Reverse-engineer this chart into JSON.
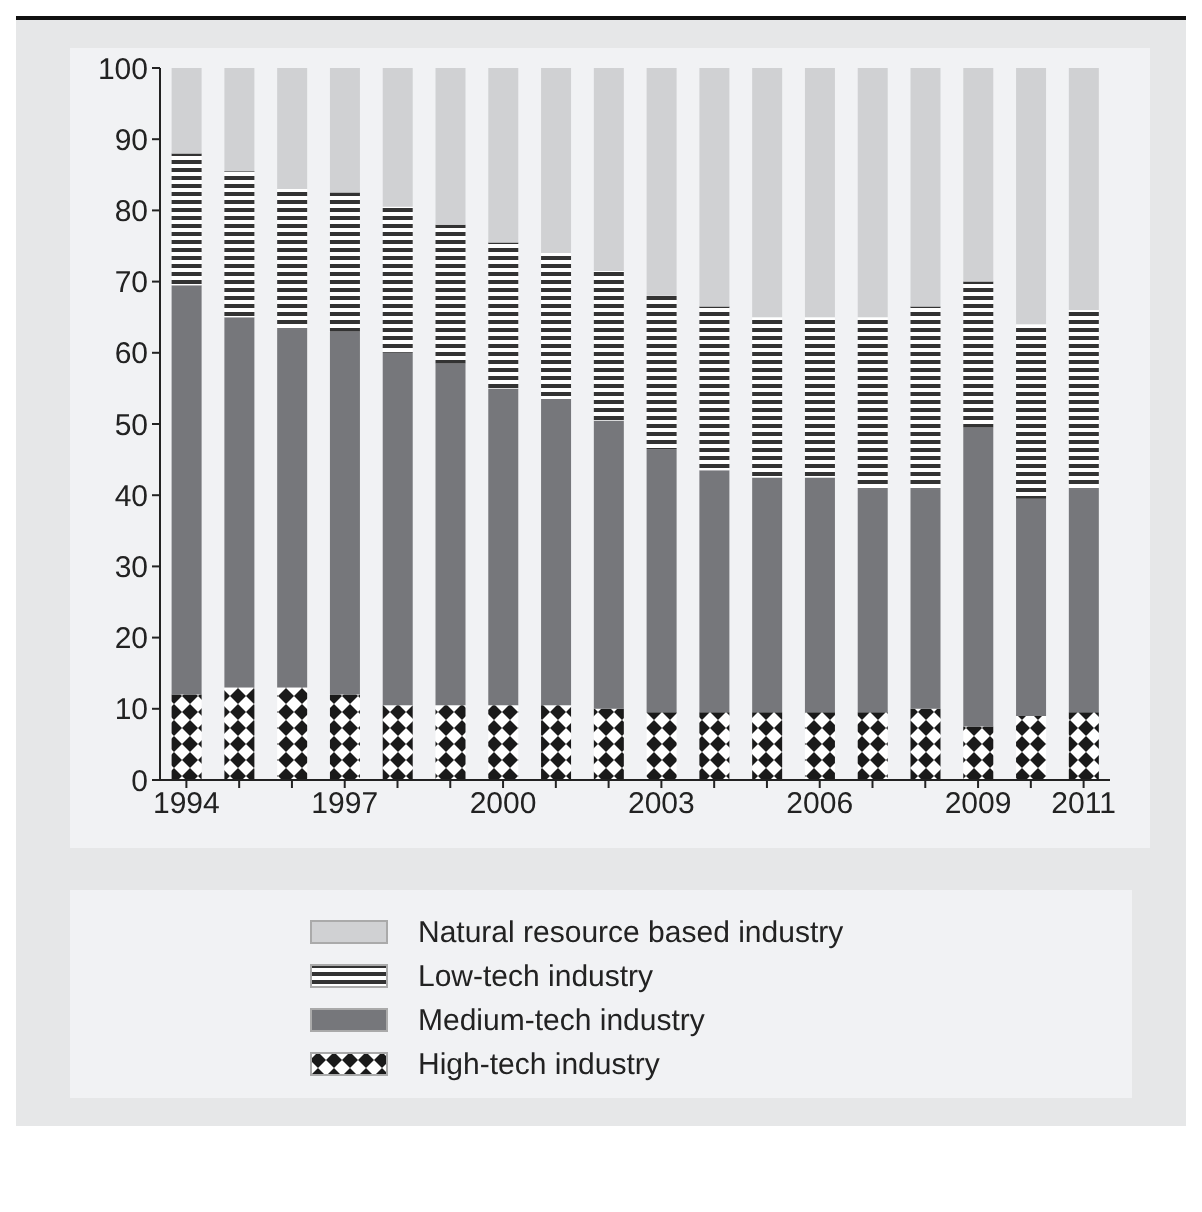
{
  "chart_data": {
    "type": "bar",
    "stacked": true,
    "categories": [
      "1994",
      null,
      null,
      "1997",
      null,
      null,
      "2000",
      null,
      null,
      "2003",
      null,
      null,
      "2006",
      null,
      null,
      "2009",
      null,
      "2011"
    ],
    "series": [
      {
        "name": "High-tech industry",
        "color": "#1a1a1a",
        "values": [
          12,
          13,
          13,
          12,
          10.5,
          10.5,
          10.5,
          10.5,
          10,
          9.5,
          9.5,
          9.5,
          9.5,
          9.5,
          10,
          7.5,
          9,
          9.5
        ]
      },
      {
        "name": "Medium-tech industry",
        "color": "#76777b",
        "values": [
          57.5,
          52,
          50.5,
          51,
          49.5,
          48,
          44.5,
          43,
          40.5,
          37,
          34,
          33,
          33,
          31.5,
          31,
          42,
          30.5,
          31.5
        ]
      },
      {
        "name": "Low-tech industry",
        "color": "#333333",
        "values": [
          18.5,
          20.5,
          19.5,
          19.5,
          20.5,
          19.5,
          20.5,
          20.5,
          21,
          21.5,
          23,
          22.5,
          22.5,
          24,
          25.5,
          20.5,
          24.5,
          25
        ]
      },
      {
        "name": "Natural resource based industry",
        "color": "#d0d1d3",
        "values": [
          12,
          14.5,
          17,
          17.5,
          19.5,
          22,
          24.5,
          26,
          28.5,
          32,
          33.5,
          35,
          35,
          35,
          33.5,
          30,
          36,
          34
        ]
      }
    ],
    "ylim": [
      0,
      100
    ],
    "yticks": [
      0,
      10,
      20,
      30,
      40,
      50,
      60,
      70,
      80,
      90,
      100
    ],
    "grid": false,
    "legend": "bottom"
  }
}
